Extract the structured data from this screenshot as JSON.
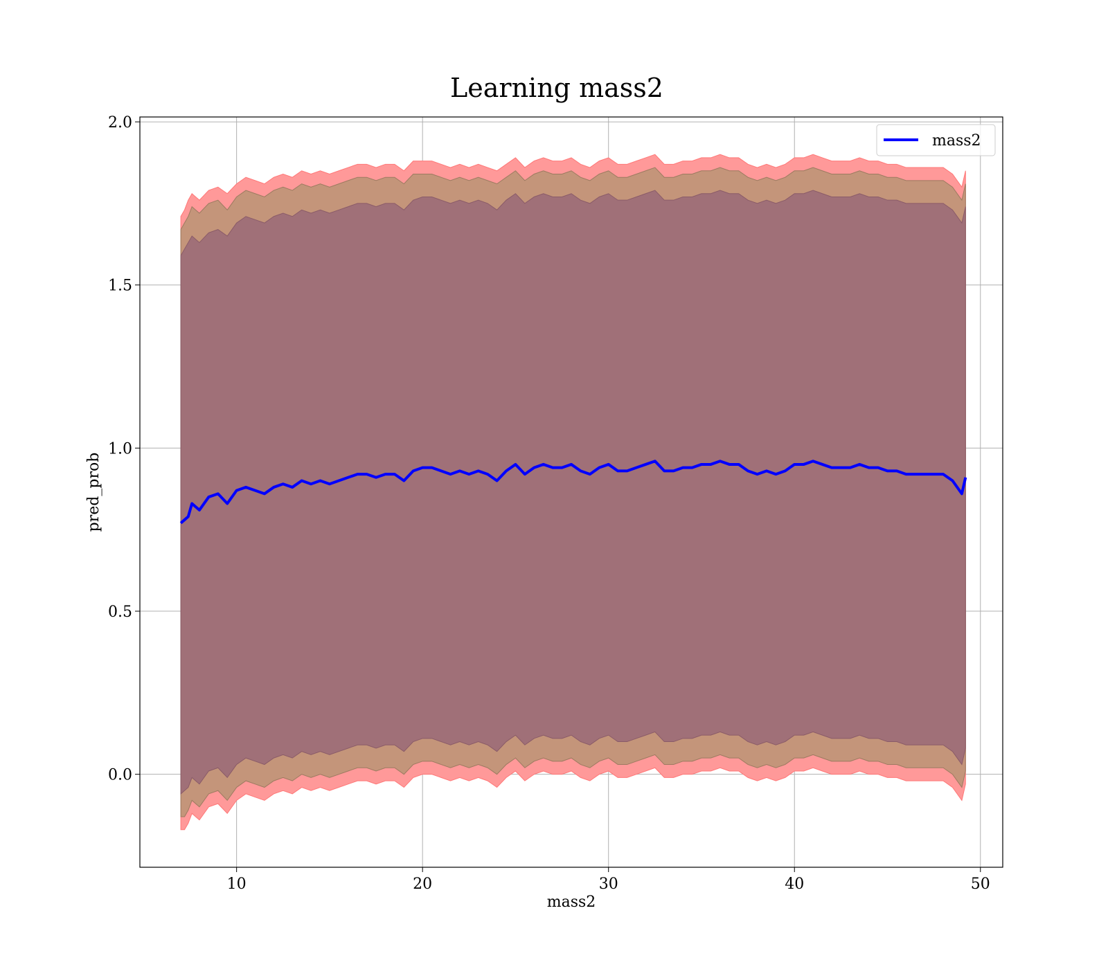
{
  "chart_data": {
    "type": "line",
    "title": "Learning mass2",
    "xlabel": "mass2",
    "ylabel": "pred_prob",
    "xlim": [
      4.8,
      51.2
    ],
    "ylim": [
      -0.285,
      2.015
    ],
    "xticks": [
      10,
      20,
      30,
      40,
      50
    ],
    "yticks": [
      0.0,
      0.5,
      1.0,
      1.5,
      2.0
    ],
    "xtick_labels": [
      "10",
      "20",
      "30",
      "40",
      "50"
    ],
    "ytick_labels": [
      "0.0",
      "0.5",
      "1.0",
      "1.5",
      "2.0"
    ],
    "grid": true,
    "legend": {
      "position": "top-right",
      "entries": [
        "mass2"
      ]
    },
    "colors": {
      "line": "#0000ff",
      "band_outer": "#ff9999",
      "band_middle": "#c4957a",
      "band_inner": "#a07078"
    },
    "series": [
      {
        "name": "mass2",
        "x": [
          7.0,
          7.2,
          7.4,
          7.6,
          7.8,
          8.0,
          8.5,
          9.0,
          9.5,
          10.0,
          10.5,
          11.0,
          11.5,
          12.0,
          12.5,
          13.0,
          13.5,
          14.0,
          14.5,
          15.0,
          15.5,
          16.0,
          16.5,
          17.0,
          17.5,
          18.0,
          18.5,
          19.0,
          19.5,
          20.0,
          20.5,
          21.0,
          21.5,
          22.0,
          22.5,
          23.0,
          23.5,
          24.0,
          24.5,
          25.0,
          25.5,
          26.0,
          26.5,
          27.0,
          27.5,
          28.0,
          28.5,
          29.0,
          29.5,
          30.0,
          30.5,
          31.0,
          31.5,
          32.0,
          32.5,
          33.0,
          33.5,
          34.0,
          34.5,
          35.0,
          35.5,
          36.0,
          36.5,
          37.0,
          37.5,
          38.0,
          38.5,
          39.0,
          39.5,
          40.0,
          40.5,
          41.0,
          41.5,
          42.0,
          42.5,
          43.0,
          43.5,
          44.0,
          44.5,
          45.0,
          45.5,
          46.0,
          46.5,
          47.0,
          47.5,
          48.0,
          48.5,
          49.0,
          49.2
        ],
        "values": [
          0.77,
          0.78,
          0.79,
          0.83,
          0.82,
          0.81,
          0.85,
          0.86,
          0.83,
          0.87,
          0.88,
          0.87,
          0.86,
          0.88,
          0.89,
          0.88,
          0.9,
          0.89,
          0.9,
          0.89,
          0.9,
          0.91,
          0.92,
          0.92,
          0.91,
          0.92,
          0.92,
          0.9,
          0.93,
          0.94,
          0.94,
          0.93,
          0.92,
          0.93,
          0.92,
          0.93,
          0.92,
          0.9,
          0.93,
          0.95,
          0.92,
          0.94,
          0.95,
          0.94,
          0.94,
          0.95,
          0.93,
          0.92,
          0.94,
          0.95,
          0.93,
          0.93,
          0.94,
          0.95,
          0.96,
          0.93,
          0.93,
          0.94,
          0.94,
          0.95,
          0.95,
          0.96,
          0.95,
          0.95,
          0.93,
          0.92,
          0.93,
          0.92,
          0.93,
          0.95,
          0.95,
          0.96,
          0.95,
          0.94,
          0.94,
          0.94,
          0.95,
          0.94,
          0.94,
          0.93,
          0.93,
          0.92,
          0.92,
          0.92,
          0.92,
          0.92,
          0.9,
          0.86,
          0.91
        ]
      }
    ],
    "bands": [
      {
        "layer": "outer",
        "upper": [
          1.71,
          1.73,
          1.76,
          1.78,
          1.77,
          1.76,
          1.79,
          1.8,
          1.78,
          1.81,
          1.83,
          1.82,
          1.81,
          1.83,
          1.84,
          1.83,
          1.85,
          1.84,
          1.85,
          1.84,
          1.85,
          1.86,
          1.87,
          1.87,
          1.86,
          1.87,
          1.87,
          1.85,
          1.88,
          1.88,
          1.88,
          1.87,
          1.86,
          1.87,
          1.86,
          1.87,
          1.86,
          1.85,
          1.87,
          1.89,
          1.86,
          1.88,
          1.89,
          1.88,
          1.88,
          1.89,
          1.87,
          1.86,
          1.88,
          1.89,
          1.87,
          1.87,
          1.88,
          1.89,
          1.9,
          1.87,
          1.87,
          1.88,
          1.88,
          1.89,
          1.89,
          1.9,
          1.89,
          1.89,
          1.87,
          1.86,
          1.87,
          1.86,
          1.87,
          1.89,
          1.89,
          1.9,
          1.89,
          1.88,
          1.88,
          1.88,
          1.89,
          1.88,
          1.88,
          1.87,
          1.87,
          1.86,
          1.86,
          1.86,
          1.86,
          1.86,
          1.84,
          1.8,
          1.85
        ],
        "lower": [
          -0.17,
          -0.17,
          -0.15,
          -0.12,
          -0.13,
          -0.14,
          -0.1,
          -0.09,
          -0.12,
          -0.08,
          -0.06,
          -0.07,
          -0.08,
          -0.06,
          -0.05,
          -0.06,
          -0.04,
          -0.05,
          -0.04,
          -0.05,
          -0.04,
          -0.03,
          -0.02,
          -0.02,
          -0.03,
          -0.02,
          -0.02,
          -0.04,
          -0.01,
          0.0,
          0.0,
          -0.01,
          -0.02,
          -0.01,
          -0.02,
          -0.01,
          -0.02,
          -0.04,
          -0.01,
          0.01,
          -0.02,
          0.0,
          0.01,
          0.0,
          0.0,
          0.01,
          -0.01,
          -0.02,
          0.0,
          0.01,
          -0.01,
          -0.01,
          0.0,
          0.01,
          0.02,
          -0.01,
          -0.01,
          0.0,
          0.0,
          0.01,
          0.01,
          0.02,
          0.01,
          0.01,
          -0.01,
          -0.02,
          -0.01,
          -0.02,
          -0.01,
          0.01,
          0.01,
          0.02,
          0.01,
          0.0,
          0.0,
          0.0,
          0.01,
          0.0,
          0.0,
          -0.01,
          -0.01,
          -0.02,
          -0.02,
          -0.02,
          -0.02,
          -0.02,
          -0.04,
          -0.08,
          -0.03
        ]
      },
      {
        "layer": "middle",
        "upper": [
          1.67,
          1.69,
          1.71,
          1.74,
          1.73,
          1.72,
          1.75,
          1.76,
          1.73,
          1.77,
          1.79,
          1.78,
          1.77,
          1.79,
          1.8,
          1.79,
          1.81,
          1.8,
          1.81,
          1.8,
          1.81,
          1.82,
          1.83,
          1.83,
          1.82,
          1.83,
          1.83,
          1.81,
          1.84,
          1.84,
          1.84,
          1.83,
          1.82,
          1.83,
          1.82,
          1.83,
          1.82,
          1.81,
          1.83,
          1.85,
          1.82,
          1.84,
          1.85,
          1.84,
          1.84,
          1.85,
          1.83,
          1.82,
          1.84,
          1.85,
          1.83,
          1.83,
          1.84,
          1.85,
          1.86,
          1.83,
          1.83,
          1.84,
          1.84,
          1.85,
          1.85,
          1.86,
          1.85,
          1.85,
          1.83,
          1.82,
          1.83,
          1.82,
          1.83,
          1.85,
          1.85,
          1.86,
          1.85,
          1.84,
          1.84,
          1.84,
          1.85,
          1.84,
          1.84,
          1.83,
          1.83,
          1.82,
          1.82,
          1.82,
          1.82,
          1.82,
          1.8,
          1.76,
          1.81
        ],
        "lower": [
          -0.13,
          -0.13,
          -0.11,
          -0.08,
          -0.09,
          -0.1,
          -0.06,
          -0.05,
          -0.08,
          -0.04,
          -0.02,
          -0.03,
          -0.04,
          -0.02,
          -0.01,
          -0.02,
          0.0,
          -0.01,
          0.0,
          -0.01,
          0.0,
          0.01,
          0.02,
          0.02,
          0.01,
          0.02,
          0.02,
          0.0,
          0.03,
          0.04,
          0.04,
          0.03,
          0.02,
          0.03,
          0.02,
          0.03,
          0.02,
          0.0,
          0.03,
          0.05,
          0.02,
          0.04,
          0.05,
          0.04,
          0.04,
          0.05,
          0.03,
          0.02,
          0.04,
          0.05,
          0.03,
          0.03,
          0.04,
          0.05,
          0.06,
          0.03,
          0.03,
          0.04,
          0.04,
          0.05,
          0.05,
          0.06,
          0.05,
          0.05,
          0.03,
          0.02,
          0.03,
          0.02,
          0.03,
          0.05,
          0.05,
          0.06,
          0.05,
          0.04,
          0.04,
          0.04,
          0.05,
          0.04,
          0.04,
          0.03,
          0.03,
          0.02,
          0.02,
          0.02,
          0.02,
          0.02,
          0.0,
          -0.04,
          0.01
        ]
      },
      {
        "layer": "inner",
        "upper": [
          1.59,
          1.61,
          1.63,
          1.65,
          1.64,
          1.63,
          1.66,
          1.67,
          1.65,
          1.69,
          1.71,
          1.7,
          1.69,
          1.71,
          1.72,
          1.71,
          1.73,
          1.72,
          1.73,
          1.72,
          1.73,
          1.74,
          1.75,
          1.75,
          1.74,
          1.75,
          1.75,
          1.73,
          1.76,
          1.77,
          1.77,
          1.76,
          1.75,
          1.76,
          1.75,
          1.76,
          1.75,
          1.73,
          1.76,
          1.78,
          1.75,
          1.77,
          1.78,
          1.77,
          1.77,
          1.78,
          1.76,
          1.75,
          1.77,
          1.78,
          1.76,
          1.76,
          1.77,
          1.78,
          1.79,
          1.76,
          1.76,
          1.77,
          1.77,
          1.78,
          1.78,
          1.79,
          1.78,
          1.78,
          1.76,
          1.75,
          1.76,
          1.75,
          1.76,
          1.78,
          1.78,
          1.79,
          1.78,
          1.77,
          1.77,
          1.77,
          1.78,
          1.77,
          1.77,
          1.76,
          1.76,
          1.75,
          1.75,
          1.75,
          1.75,
          1.75,
          1.73,
          1.69,
          1.74
        ],
        "lower": [
          -0.06,
          -0.05,
          -0.04,
          -0.01,
          -0.02,
          -0.03,
          0.01,
          0.02,
          -0.01,
          0.03,
          0.05,
          0.04,
          0.03,
          0.05,
          0.06,
          0.05,
          0.07,
          0.06,
          0.07,
          0.06,
          0.07,
          0.08,
          0.09,
          0.09,
          0.08,
          0.09,
          0.09,
          0.07,
          0.1,
          0.11,
          0.11,
          0.1,
          0.09,
          0.1,
          0.09,
          0.1,
          0.09,
          0.07,
          0.1,
          0.12,
          0.09,
          0.11,
          0.12,
          0.11,
          0.11,
          0.12,
          0.1,
          0.09,
          0.11,
          0.12,
          0.1,
          0.1,
          0.11,
          0.12,
          0.13,
          0.1,
          0.1,
          0.11,
          0.11,
          0.12,
          0.12,
          0.13,
          0.12,
          0.12,
          0.1,
          0.09,
          0.1,
          0.09,
          0.1,
          0.12,
          0.12,
          0.13,
          0.12,
          0.11,
          0.11,
          0.11,
          0.12,
          0.11,
          0.11,
          0.1,
          0.1,
          0.09,
          0.09,
          0.09,
          0.09,
          0.09,
          0.07,
          0.03,
          0.08
        ]
      }
    ]
  }
}
